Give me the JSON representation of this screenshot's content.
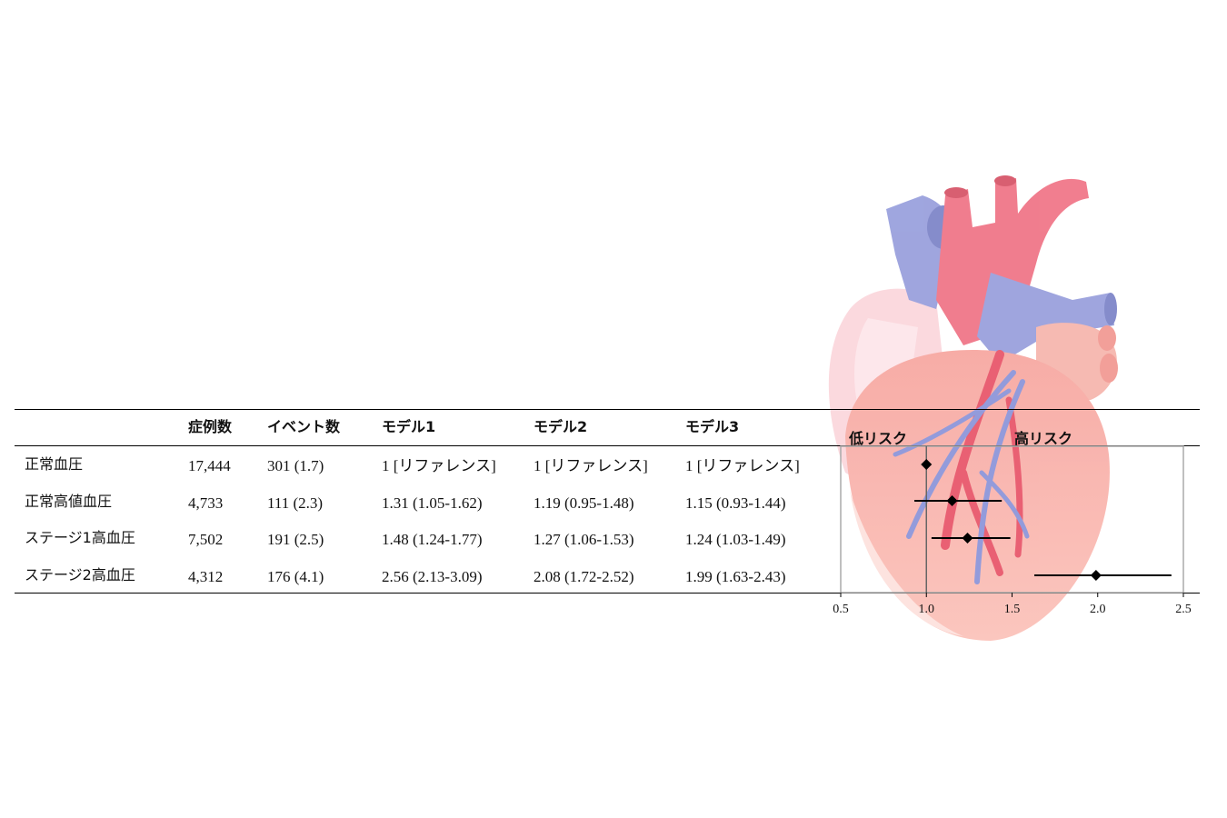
{
  "table": {
    "columns": [
      "症例数",
      "イベント数",
      "モデル1",
      "モデル2",
      "モデル3"
    ],
    "rows": [
      {
        "label": "正常血圧",
        "cases": "17,444",
        "events": "301 (1.7)",
        "m1": "1 [リファレンス]",
        "m2": "1 [リファレンス]",
        "m3": "1 [リファレンス]"
      },
      {
        "label": "正常高値血圧",
        "cases": "4,733",
        "events": "111 (2.3)",
        "m1": "1.31 (1.05-1.62)",
        "m2": "1.19 (0.95-1.48)",
        "m3": "1.15 (0.93-1.44)"
      },
      {
        "label": "ステージ1高血圧",
        "cases": "7,502",
        "events": "191 (2.5)",
        "m1": "1.48 (1.24-1.77)",
        "m2": "1.27 (1.06-1.53)",
        "m3": "1.24 (1.03-1.49)"
      },
      {
        "label": "ステージ2高血圧",
        "cases": "4,312",
        "events": "176 (4.1)",
        "m1": "2.56 (2.13-3.09)",
        "m2": "2.08 (1.72-2.52)",
        "m3": "1.99 (1.63-2.43)"
      }
    ]
  },
  "chart_data": {
    "type": "scatter",
    "low_risk_label": "低リスク",
    "high_risk_label": "高リスク",
    "x_ticks": [
      "0.5",
      "1.0",
      "1.5",
      "2.0",
      "2.5"
    ],
    "xlim": [
      0.5,
      2.5
    ],
    "reference_line": 1.0,
    "points": [
      {
        "estimate": 1.0,
        "lower": 1.0,
        "upper": 1.0
      },
      {
        "estimate": 1.15,
        "lower": 0.93,
        "upper": 1.44
      },
      {
        "estimate": 1.24,
        "lower": 1.03,
        "upper": 1.49
      },
      {
        "estimate": 1.99,
        "lower": 1.63,
        "upper": 2.43
      }
    ],
    "colors": {
      "marker": "#000000",
      "frame": "#aaaaaa",
      "reference": "#666666"
    }
  }
}
